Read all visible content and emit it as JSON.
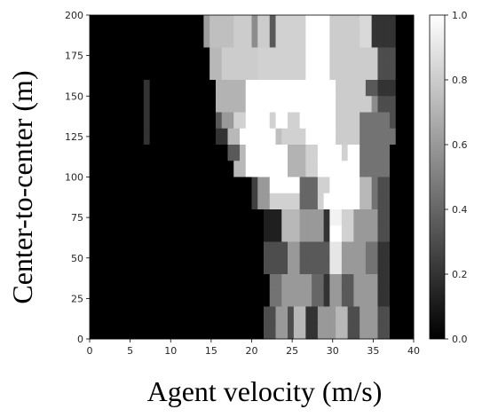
{
  "chart_data": {
    "type": "heatmap",
    "title": "",
    "xlabel": "Agent velocity (m/s)",
    "ylabel": "Center-to-center (m)",
    "xlim": [
      0,
      40
    ],
    "ylim": [
      0,
      200
    ],
    "x_ticks": [
      0,
      5,
      10,
      15,
      20,
      25,
      30,
      35,
      40
    ],
    "y_ticks": [
      0,
      25,
      50,
      75,
      100,
      125,
      150,
      175,
      200
    ],
    "colormap": "gray",
    "colorbar": {
      "range": [
        0.0,
        1.0
      ],
      "ticks": [
        "0.0",
        "0.2",
        "0.4",
        "0.6",
        "0.8",
        "1.0"
      ]
    },
    "x_bins": [
      0.0,
      0.74,
      1.48,
      2.22,
      2.96,
      3.7,
      4.44,
      5.19,
      5.93,
      6.67,
      7.41,
      8.15,
      8.89,
      9.63,
      10.37,
      11.11,
      11.85,
      12.59,
      13.33,
      14.07,
      14.81,
      15.56,
      16.3,
      17.04,
      17.78,
      18.52,
      19.26,
      20.0,
      20.74,
      21.48,
      22.22,
      22.96,
      23.7,
      24.44,
      25.19,
      25.93,
      26.67,
      27.41,
      28.15,
      28.89,
      29.63,
      30.37,
      31.11,
      31.85,
      32.59,
      33.33,
      34.07,
      34.81,
      35.56,
      36.3,
      37.04,
      37.78,
      38.52,
      39.26
    ],
    "y_bins": [
      200,
      190,
      180,
      170,
      160,
      150,
      140,
      130,
      120,
      110,
      100,
      90,
      80,
      70,
      60,
      50,
      40,
      30,
      20,
      10
    ],
    "values": [
      [
        0,
        0,
        0,
        0,
        0,
        0,
        0,
        0,
        0,
        0,
        0,
        0,
        0,
        0,
        0,
        0,
        0,
        0,
        0,
        0.62,
        0.75,
        0.75,
        0.75,
        0.75,
        0.8,
        0.8,
        0.8,
        0.55,
        0.8,
        0.8,
        0.35,
        0.82,
        0.82,
        0.82,
        0.82,
        0.82,
        1,
        1,
        1,
        1,
        0.8,
        0.8,
        0.8,
        0.8,
        0.8,
        0.85,
        0.85,
        0.2,
        0.2,
        0.2,
        0.2,
        0,
        0,
        0
      ],
      [
        0,
        0,
        0,
        0,
        0,
        0,
        0,
        0,
        0,
        0,
        0,
        0,
        0,
        0,
        0,
        0,
        0,
        0,
        0,
        0.62,
        0.75,
        0.75,
        0.75,
        0.75,
        0.8,
        0.8,
        0.8,
        0.55,
        0.8,
        0.8,
        0.35,
        0.82,
        0.82,
        0.82,
        0.82,
        0.82,
        1,
        1,
        1,
        1,
        0.8,
        0.8,
        0.8,
        0.8,
        0.8,
        0.85,
        0.85,
        0.2,
        0.2,
        0.2,
        0.2,
        0,
        0,
        0
      ],
      [
        0,
        0,
        0,
        0,
        0,
        0,
        0,
        0,
        0,
        0,
        0,
        0,
        0,
        0,
        0,
        0,
        0,
        0,
        0,
        0,
        0.72,
        0.72,
        0.8,
        0.8,
        0.8,
        0.8,
        0.8,
        0.8,
        0.82,
        0.82,
        0.82,
        0.82,
        0.82,
        0.82,
        0.82,
        0.82,
        1,
        1,
        1,
        1,
        0.8,
        0.8,
        0.8,
        0.8,
        0.8,
        0.8,
        0.8,
        0.8,
        0.3,
        0.3,
        0.3,
        0,
        0,
        0
      ],
      [
        0,
        0,
        0,
        0,
        0,
        0,
        0,
        0,
        0,
        0,
        0,
        0,
        0,
        0,
        0,
        0,
        0,
        0,
        0,
        0,
        0.72,
        0.72,
        0.8,
        0.8,
        0.8,
        0.8,
        0.8,
        0.8,
        0.82,
        0.82,
        0.82,
        0.82,
        0.82,
        0.82,
        0.82,
        0.82,
        1,
        1,
        1,
        1,
        0.8,
        0.8,
        0.8,
        0.8,
        0.8,
        0.8,
        0.8,
        0.8,
        0.3,
        0.3,
        0.3,
        0,
        0,
        0
      ],
      [
        0,
        0,
        0,
        0,
        0,
        0,
        0,
        0,
        0,
        0.2,
        0,
        0,
        0,
        0,
        0,
        0,
        0,
        0,
        0,
        0,
        0,
        0.7,
        0.7,
        0.7,
        0.7,
        0.7,
        1,
        1,
        1,
        1,
        1,
        1,
        1,
        1,
        1,
        1,
        1,
        1,
        1,
        1,
        1,
        0.8,
        0.8,
        0.8,
        0.8,
        0.8,
        0.35,
        0.35,
        0.2,
        0.2,
        0.2,
        0,
        0,
        0
      ],
      [
        0,
        0,
        0,
        0,
        0,
        0,
        0,
        0,
        0,
        0.2,
        0,
        0,
        0,
        0,
        0,
        0,
        0,
        0,
        0,
        0,
        0,
        0.7,
        0.7,
        0.7,
        0.7,
        0.7,
        1,
        1,
        1,
        1,
        1,
        1,
        1,
        1,
        1,
        1,
        1,
        1,
        1,
        1,
        1,
        0.8,
        0.8,
        0.8,
        0.8,
        0.8,
        0.8,
        0.55,
        0.3,
        0.3,
        0.3,
        0,
        0,
        0
      ],
      [
        0,
        0,
        0,
        0,
        0,
        0,
        0,
        0,
        0,
        0.2,
        0,
        0,
        0,
        0,
        0,
        0,
        0,
        0,
        0,
        0,
        0,
        0.35,
        0.6,
        0.6,
        0.82,
        0.82,
        1,
        1,
        1,
        1,
        0.82,
        1,
        1,
        0.82,
        0.82,
        1,
        1,
        1,
        1,
        1,
        1,
        0.8,
        0.8,
        0.8,
        0.8,
        0.45,
        0.45,
        0.45,
        0.45,
        0.45,
        0.3,
        0,
        0,
        0
      ],
      [
        0,
        0,
        0,
        0,
        0,
        0,
        0,
        0,
        0,
        0.2,
        0,
        0,
        0,
        0,
        0,
        0,
        0,
        0,
        0,
        0,
        0,
        0.2,
        0.2,
        0.72,
        0.72,
        1,
        1,
        1,
        1,
        1,
        1,
        0.75,
        0.82,
        0.82,
        0.82,
        0.82,
        1,
        1,
        1,
        1,
        1,
        0.8,
        0.8,
        0.8,
        0.8,
        0.45,
        0.45,
        0.45,
        0.45,
        0.45,
        0.45,
        0,
        0,
        0
      ],
      [
        0,
        0,
        0,
        0,
        0,
        0,
        0,
        0,
        0,
        0,
        0,
        0,
        0,
        0,
        0,
        0,
        0,
        0,
        0,
        0,
        0,
        0,
        0,
        0.35,
        0.35,
        0.72,
        1,
        1,
        1,
        1,
        1,
        1,
        1,
        0.7,
        0.7,
        0.7,
        0.82,
        0.82,
        1,
        1,
        1,
        1,
        0.82,
        1,
        1,
        0.45,
        0.45,
        0.45,
        0.45,
        0.45,
        0,
        0,
        0,
        0
      ],
      [
        0,
        0,
        0,
        0,
        0,
        0,
        0,
        0,
        0,
        0,
        0,
        0,
        0,
        0,
        0,
        0,
        0,
        0,
        0,
        0,
        0,
        0,
        0,
        0,
        0.72,
        0.72,
        1,
        1,
        1,
        1,
        1,
        1,
        1,
        0.7,
        0.7,
        0.7,
        0.82,
        0.82,
        1,
        1,
        1,
        1,
        1,
        1,
        1,
        0.45,
        0.45,
        0.45,
        0.45,
        0.45,
        0,
        0,
        0,
        0
      ],
      [
        0,
        0,
        0,
        0,
        0,
        0,
        0,
        0,
        0,
        0,
        0,
        0,
        0,
        0,
        0,
        0,
        0,
        0,
        0,
        0,
        0,
        0,
        0,
        0,
        0,
        0,
        0,
        0.25,
        0.6,
        0.6,
        1,
        1,
        1,
        1,
        1,
        0.4,
        0.4,
        0.4,
        0.82,
        0.82,
        1,
        1,
        1,
        1,
        1,
        0.72,
        0.72,
        0.45,
        0.3,
        0.3,
        0,
        0,
        0,
        0
      ],
      [
        0,
        0,
        0,
        0,
        0,
        0,
        0,
        0,
        0,
        0,
        0,
        0,
        0,
        0,
        0,
        0,
        0,
        0,
        0,
        0,
        0,
        0,
        0,
        0,
        0,
        0,
        0,
        0.25,
        0.6,
        0.6,
        0.82,
        0.82,
        0.82,
        0.82,
        0.82,
        0.4,
        0.4,
        0.4,
        0.82,
        1,
        1,
        1,
        1,
        1,
        1,
        0.72,
        0.72,
        0.45,
        0.3,
        0.3,
        0,
        0,
        0,
        0
      ],
      [
        0,
        0,
        0,
        0,
        0,
        0,
        0,
        0,
        0,
        0,
        0,
        0,
        0,
        0,
        0,
        0,
        0,
        0,
        0,
        0,
        0,
        0,
        0,
        0,
        0,
        0,
        0,
        0,
        0,
        0.12,
        0.12,
        0.12,
        0.72,
        0.72,
        0.72,
        0.6,
        0.6,
        0.6,
        0.6,
        0.2,
        0.95,
        0.95,
        0.82,
        0.82,
        0.6,
        0.6,
        0.6,
        0.6,
        0.3,
        0.3,
        0,
        0,
        0,
        0
      ],
      [
        0,
        0,
        0,
        0,
        0,
        0,
        0,
        0,
        0,
        0,
        0,
        0,
        0,
        0,
        0,
        0,
        0,
        0,
        0,
        0,
        0,
        0,
        0,
        0,
        0,
        0,
        0,
        0,
        0,
        0.12,
        0.12,
        0.12,
        0.72,
        0.72,
        0.72,
        0.6,
        0.6,
        0.6,
        0.6,
        0.2,
        1,
        1,
        0.82,
        0.82,
        0.6,
        0.6,
        0.6,
        0.6,
        0.3,
        0.3,
        0,
        0,
        0,
        0
      ],
      [
        0,
        0,
        0,
        0,
        0,
        0,
        0,
        0,
        0,
        0,
        0,
        0,
        0,
        0,
        0,
        0,
        0,
        0,
        0,
        0,
        0,
        0,
        0,
        0,
        0,
        0,
        0,
        0,
        0,
        0.3,
        0.3,
        0.3,
        0.3,
        0.6,
        0.6,
        0.35,
        0.35,
        0.35,
        0.35,
        0.35,
        0.9,
        0.9,
        0.6,
        0.6,
        0.6,
        0.6,
        0.45,
        0.45,
        0.2,
        0.2,
        0,
        0,
        0,
        0
      ],
      [
        0,
        0,
        0,
        0,
        0,
        0,
        0,
        0,
        0,
        0,
        0,
        0,
        0,
        0,
        0,
        0,
        0,
        0,
        0,
        0,
        0,
        0,
        0,
        0,
        0,
        0,
        0,
        0,
        0,
        0.3,
        0.3,
        0.3,
        0.3,
        0.6,
        0.6,
        0.35,
        0.35,
        0.35,
        0.35,
        0.35,
        0.9,
        0.9,
        0.6,
        0.6,
        0.6,
        0.6,
        0.45,
        0.45,
        0.2,
        0.2,
        0,
        0,
        0,
        0
      ],
      [
        0,
        0,
        0,
        0,
        0,
        0,
        0,
        0,
        0,
        0,
        0,
        0,
        0,
        0,
        0,
        0,
        0,
        0,
        0,
        0,
        0,
        0,
        0,
        0,
        0,
        0,
        0,
        0,
        0,
        0,
        0.45,
        0.45,
        0.6,
        0.6,
        0.6,
        0.6,
        0.6,
        0.4,
        0.4,
        0.2,
        0.6,
        0.6,
        0.35,
        0.35,
        0.6,
        0.6,
        0.6,
        0.6,
        0.2,
        0.2,
        0,
        0,
        0,
        0
      ],
      [
        0,
        0,
        0,
        0,
        0,
        0,
        0,
        0,
        0,
        0,
        0,
        0,
        0,
        0,
        0,
        0,
        0,
        0,
        0,
        0,
        0,
        0,
        0,
        0,
        0,
        0,
        0,
        0,
        0,
        0,
        0.45,
        0.45,
        0.6,
        0.6,
        0.6,
        0.6,
        0.6,
        0.4,
        0.4,
        0.2,
        0.6,
        0.6,
        0.35,
        0.35,
        0.6,
        0.6,
        0.6,
        0.6,
        0.2,
        0.2,
        0,
        0,
        0,
        0
      ],
      [
        0,
        0,
        0,
        0,
        0,
        0,
        0,
        0,
        0,
        0,
        0,
        0,
        0,
        0,
        0,
        0,
        0,
        0,
        0,
        0,
        0,
        0,
        0,
        0,
        0,
        0,
        0,
        0,
        0,
        0.3,
        0.3,
        0.6,
        0.6,
        0.3,
        0.72,
        0.72,
        0.2,
        0.2,
        0.6,
        0.6,
        0.6,
        0.72,
        0.72,
        0.3,
        0.3,
        0.6,
        0.6,
        0.6,
        0.3,
        0.3,
        0,
        0,
        0,
        0
      ],
      [
        0,
        0,
        0,
        0,
        0,
        0,
        0,
        0,
        0,
        0,
        0,
        0,
        0,
        0,
        0,
        0,
        0,
        0,
        0,
        0,
        0,
        0,
        0,
        0,
        0,
        0,
        0,
        0,
        0,
        0.3,
        0.3,
        0.6,
        0.6,
        0.3,
        0.72,
        0.72,
        0.2,
        0.2,
        0.6,
        0.6,
        0.6,
        0.72,
        0.72,
        0.3,
        0.3,
        0.6,
        0.6,
        0.6,
        0.3,
        0.3,
        0,
        0,
        0,
        0
      ]
    ]
  }
}
